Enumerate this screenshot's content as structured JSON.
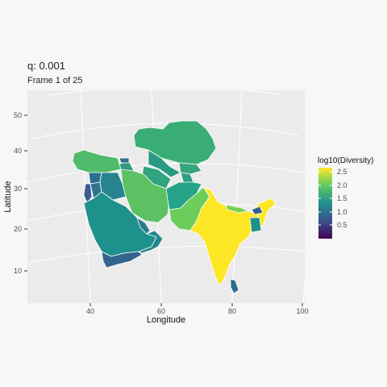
{
  "title": "q: 0.001",
  "subtitle": "Frame 1 of 25",
  "x_axis": {
    "label": "Longitude",
    "ticks": [
      "40",
      "60",
      "80",
      "100"
    ]
  },
  "y_axis": {
    "label": "Latitude",
    "ticks": [
      "50",
      "40",
      "30",
      "20",
      "10"
    ]
  },
  "legend": {
    "title": "log10(Diversity)",
    "ticks": [
      "2.5",
      "2.0",
      "1.5",
      "1.0",
      "0.5"
    ],
    "palette": [
      "#fde725",
      "#5ec962",
      "#21918c",
      "#3b528b",
      "#440154"
    ]
  },
  "colors": {
    "panel": "#ebebeb",
    "grid": "#ffffff",
    "region_border": "#ffffff"
  }
}
